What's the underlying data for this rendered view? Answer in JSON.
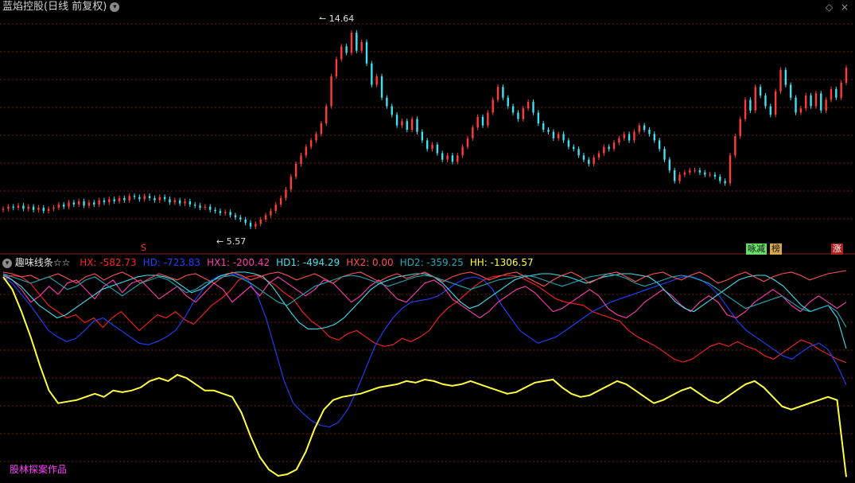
{
  "top_panel": {
    "title": "蓝焰控股(日线 前复权)",
    "high_label": "14.64",
    "low_label": "5.57",
    "signal_s": "S",
    "badge_zs": "减",
    "badge_zs_prefix": "咏",
    "badge_bang": "榜",
    "badge_zhang": "涨"
  },
  "bottom_panel": {
    "title": "趣味线条☆☆",
    "indicators": [
      {
        "key": "HX",
        "label": "HX: -582.73",
        "color": "#ff2020"
      },
      {
        "key": "HD",
        "label": "HD: -723.83",
        "color": "#2040ff"
      },
      {
        "key": "HX1",
        "label": "HX1: -200.42",
        "color": "#ff3bb0"
      },
      {
        "key": "HD1",
        "label": "HD1: -494.29",
        "color": "#40e0f0"
      },
      {
        "key": "HX2",
        "label": "HX2: 0.00",
        "color": "#ff5050"
      },
      {
        "key": "HD2",
        "label": "HD2: -359.25",
        "color": "#20a8b8"
      },
      {
        "key": "HH",
        "label": "HH: -1306.57",
        "color": "#ffff40"
      }
    ],
    "watermark": "股林探案作品"
  },
  "colors": {
    "up": "#ff3c3c",
    "down": "#40e0f0",
    "grid": "#7a1a1a"
  },
  "chart_data": [
    {
      "type": "candlestick",
      "title": "蓝焰控股(日线 前复权)",
      "annotations": [
        {
          "label": "14.64",
          "kind": "max"
        },
        {
          "label": "5.57",
          "kind": "min"
        }
      ],
      "ylim": [
        5.0,
        15.5
      ],
      "closes": [
        6.4,
        6.5,
        6.45,
        6.55,
        6.4,
        6.5,
        6.35,
        6.45,
        6.3,
        6.4,
        6.45,
        6.6,
        6.5,
        6.7,
        6.6,
        6.75,
        6.55,
        6.7,
        6.6,
        6.8,
        6.7,
        6.85,
        6.75,
        6.9,
        6.8,
        7.0,
        6.95,
        6.85,
        7.0,
        6.9,
        6.8,
        6.95,
        6.85,
        6.7,
        6.8,
        6.65,
        6.75,
        6.6,
        6.55,
        6.45,
        6.5,
        6.35,
        6.3,
        6.2,
        6.25,
        6.1,
        6.0,
        5.9,
        5.75,
        5.57,
        5.7,
        5.9,
        6.1,
        6.3,
        6.6,
        6.9,
        7.3,
        7.9,
        8.5,
        8.9,
        9.3,
        9.6,
        9.9,
        10.4,
        11.2,
        12.6,
        13.4,
        14.0,
        13.7,
        14.64,
        13.8,
        14.2,
        13.2,
        12.2,
        12.6,
        11.6,
        11.2,
        10.8,
        10.3,
        10.5,
        10.1,
        10.6,
        10.0,
        9.6,
        9.2,
        9.4,
        9.0,
        8.7,
        8.9,
        8.6,
        8.9,
        9.3,
        9.7,
        10.2,
        10.7,
        10.3,
        10.9,
        11.5,
        12.1,
        11.6,
        11.2,
        10.9,
        10.6,
        11.1,
        11.4,
        10.9,
        10.4,
        10.1,
        10.0,
        9.7,
        9.9,
        9.6,
        9.3,
        9.2,
        8.9,
        8.7,
        8.5,
        8.8,
        9.0,
        9.3,
        9.2,
        9.5,
        9.7,
        9.9,
        9.6,
        10.0,
        10.3,
        10.1,
        9.9,
        9.6,
        9.2,
        8.7,
        8.2,
        7.7,
        8.0,
        8.1,
        8.2,
        8.2,
        8.1,
        8.0,
        8.0,
        7.9,
        7.7,
        7.6,
        8.9,
        9.8,
        10.6,
        11.5,
        11.0,
        12.1,
        11.7,
        11.2,
        10.8,
        11.9,
        12.9,
        12.2,
        11.6,
        10.9,
        11.1,
        11.7,
        11.2,
        11.8,
        11.0,
        11.5,
        12.0,
        11.6,
        12.3,
        13.0
      ]
    },
    {
      "type": "line",
      "title": "趣味线条☆☆",
      "ylim": [
        -1320,
        0
      ],
      "series": [
        {
          "name": "HX",
          "values": [
            -60,
            -30,
            -40,
            -80,
            -150,
            -220,
            -260,
            -300,
            -280,
            -330,
            -300,
            -360,
            -300,
            -260,
            -320,
            -380,
            -330,
            -280,
            -300,
            -260,
            -310,
            -340,
            -280,
            -220,
            -180,
            -130,
            -60,
            -40,
            -30,
            -60,
            -90,
            -140,
            -180,
            -260,
            -320,
            -360,
            -420,
            -440,
            -400,
            -380,
            -420,
            -460,
            -480,
            -470,
            -430,
            -450,
            -420,
            -380,
            -300,
            -240,
            -200,
            -150,
            -100,
            -60,
            -40,
            -30,
            -30,
            -40,
            -70,
            -100,
            -140,
            -180,
            -200,
            -210,
            -220,
            -260,
            -280,
            -300,
            -320,
            -380,
            -420,
            -450,
            -480,
            -520,
            -560,
            -580,
            -560,
            -520,
            -480,
            -460,
            -480,
            -450,
            -480,
            -500,
            -540,
            -560,
            -520,
            -480,
            -440,
            -460,
            -500,
            -530,
            -560,
            -583
          ]
        },
        {
          "name": "HD",
          "values": [
            -40,
            -80,
            -150,
            -220,
            -300,
            -380,
            -420,
            -450,
            -430,
            -380,
            -320,
            -300,
            -340,
            -380,
            -420,
            -460,
            -470,
            -450,
            -420,
            -380,
            -300,
            -200,
            -120,
            -60,
            -30,
            -20,
            -30,
            -60,
            -150,
            -300,
            -500,
            -700,
            -840,
            -900,
            -950,
            -980,
            -990,
            -960,
            -880,
            -760,
            -620,
            -480,
            -380,
            -300,
            -240,
            -200,
            -190,
            -180,
            -160,
            -120,
            -80,
            -50,
            -40,
            -60,
            -120,
            -220,
            -300,
            -380,
            -420,
            -460,
            -440,
            -420,
            -380,
            -340,
            -300,
            -260,
            -230,
            -200,
            -180,
            -160,
            -140,
            -120,
            -100,
            -80,
            -60,
            -40,
            -40,
            -60,
            -100,
            -160,
            -240,
            -320,
            -380,
            -420,
            -460,
            -500,
            -540,
            -560,
            -520,
            -480,
            -460,
            -500,
            -600,
            -724
          ]
        },
        {
          "name": "HX1",
          "values": [
            -20,
            -60,
            -120,
            -200,
            -160,
            -100,
            -150,
            -80,
            -60,
            -120,
            -180,
            -100,
            -60,
            -140,
            -80,
            -60,
            -120,
            -180,
            -140,
            -100,
            -160,
            -200,
            -140,
            -80,
            -120,
            -200,
            -150,
            -100,
            -160,
            -80,
            -40,
            -80,
            -120,
            -160,
            -120,
            -60,
            -80,
            -140,
            -200,
            -160,
            -100,
            -60,
            -120,
            -180,
            -200,
            -140,
            -80,
            -60,
            -100,
            -180,
            -220,
            -260,
            -300,
            -260,
            -200,
            -160,
            -120,
            -100,
            -140,
            -200,
            -260,
            -240,
            -200,
            -160,
            -120,
            -160,
            -240,
            -280,
            -300,
            -260,
            -200,
            -160,
            -120,
            -160,
            -220,
            -260,
            -200,
            -160,
            -200,
            -280,
            -300,
            -260,
            -200,
            -160,
            -120,
            -160,
            -220,
            -260,
            -200,
            -160,
            -200,
            -240,
            -200
          ]
        },
        {
          "name": "HD1",
          "values": [
            -30,
            -60,
            -100,
            -160,
            -220,
            -260,
            -300,
            -280,
            -240,
            -200,
            -160,
            -120,
            -100,
            -80,
            -60,
            -40,
            -30,
            -30,
            -40,
            -60,
            -100,
            -140,
            -120,
            -80,
            -40,
            -20,
            -10,
            -10,
            -20,
            -40,
            -100,
            -180,
            -260,
            -330,
            -370,
            -370,
            -360,
            -340,
            -300,
            -240,
            -180,
            -120,
            -80,
            -60,
            -40,
            -30,
            -20,
            -20,
            -40,
            -80,
            -140,
            -200,
            -240,
            -220,
            -180,
            -140,
            -100,
            -60,
            -40,
            -30,
            -20,
            -20,
            -30,
            -40,
            -60,
            -80,
            -60,
            -40,
            -30,
            -20,
            -20,
            -30,
            -40,
            -80,
            -140,
            -200,
            -240,
            -260,
            -220,
            -180,
            -140,
            -100,
            -60,
            -40,
            -30,
            -30,
            -60,
            -100,
            -160,
            -220,
            -260,
            -240,
            -220,
            -300,
            -494
          ]
        },
        {
          "name": "HX2",
          "values": [
            -10,
            -20,
            -40,
            -30,
            -60,
            -40,
            -20,
            -50,
            -80,
            -40,
            -20,
            -60,
            -30,
            -10,
            -40,
            -80,
            -50,
            -20,
            -40,
            -60,
            -30,
            -20,
            -50,
            -80,
            -40,
            -10,
            -30,
            -60,
            -40,
            -20,
            -10,
            -30,
            -60,
            -40,
            -20,
            -50,
            -80,
            -40,
            -20,
            -10,
            -40,
            -70,
            -40,
            -20,
            -50,
            -30,
            -10,
            -40,
            -70,
            -40,
            -20,
            -10,
            -30,
            -60,
            -40,
            -20,
            -10,
            -40,
            -70,
            -100,
            -60,
            -30,
            -10,
            -40,
            -80,
            -50,
            -20,
            -10,
            -40,
            -70,
            -40,
            -20,
            -10,
            -40,
            -60,
            -30,
            -10,
            -40,
            -80,
            -60,
            -30,
            -10,
            -40,
            -70,
            -40,
            -20,
            -10,
            -30,
            -60,
            -40,
            -20,
            -10,
            0
          ]
        },
        {
          "name": "HD2",
          "values": [
            -20,
            -40,
            -60,
            -80,
            -60,
            -40,
            -80,
            -120,
            -100,
            -60,
            -40,
            -80,
            -120,
            -160,
            -120,
            -80,
            -60,
            -40,
            -60,
            -100,
            -140,
            -120,
            -80,
            -60,
            -40,
            -30,
            -50,
            -80,
            -120,
            -160,
            -200,
            -220,
            -180,
            -140,
            -100,
            -80,
            -60,
            -40,
            -30,
            -40,
            -60,
            -80,
            -100,
            -80,
            -60,
            -40,
            -30,
            -40,
            -60,
            -80,
            -100,
            -120,
            -100,
            -80,
            -60,
            -50,
            -40,
            -30,
            -40,
            -60,
            -80,
            -100,
            -80,
            -60,
            -40,
            -30,
            -20,
            -30,
            -50,
            -80,
            -100,
            -80,
            -60,
            -40,
            -30,
            -40,
            -60,
            -80,
            -120,
            -160,
            -200,
            -240,
            -220,
            -200,
            -180,
            -160,
            -200,
            -240,
            -260,
            -240,
            -220,
            -260,
            -359
          ]
        },
        {
          "name": "HH",
          "values": [
            -40,
            -120,
            -260,
            -420,
            -600,
            -760,
            -840,
            -830,
            -820,
            -800,
            -780,
            -800,
            -760,
            -770,
            -760,
            -740,
            -700,
            -680,
            -700,
            -660,
            -680,
            -720,
            -760,
            -760,
            -780,
            -800,
            -900,
            -1050,
            -1180,
            -1260,
            -1300,
            -1290,
            -1260,
            -1150,
            -1000,
            -880,
            -820,
            -800,
            -790,
            -780,
            -760,
            -740,
            -730,
            -720,
            -700,
            -710,
            -690,
            -700,
            -720,
            -730,
            -720,
            -700,
            -720,
            -740,
            -760,
            -780,
            -770,
            -740,
            -710,
            -700,
            -690,
            -740,
            -780,
            -800,
            -790,
            -760,
            -730,
            -700,
            -720,
            -760,
            -800,
            -840,
            -820,
            -790,
            -760,
            -740,
            -780,
            -820,
            -840,
            -800,
            -760,
            -720,
            -700,
            -740,
            -800,
            -860,
            -880,
            -860,
            -840,
            -820,
            -800,
            -820,
            -1307
          ]
        }
      ]
    }
  ]
}
